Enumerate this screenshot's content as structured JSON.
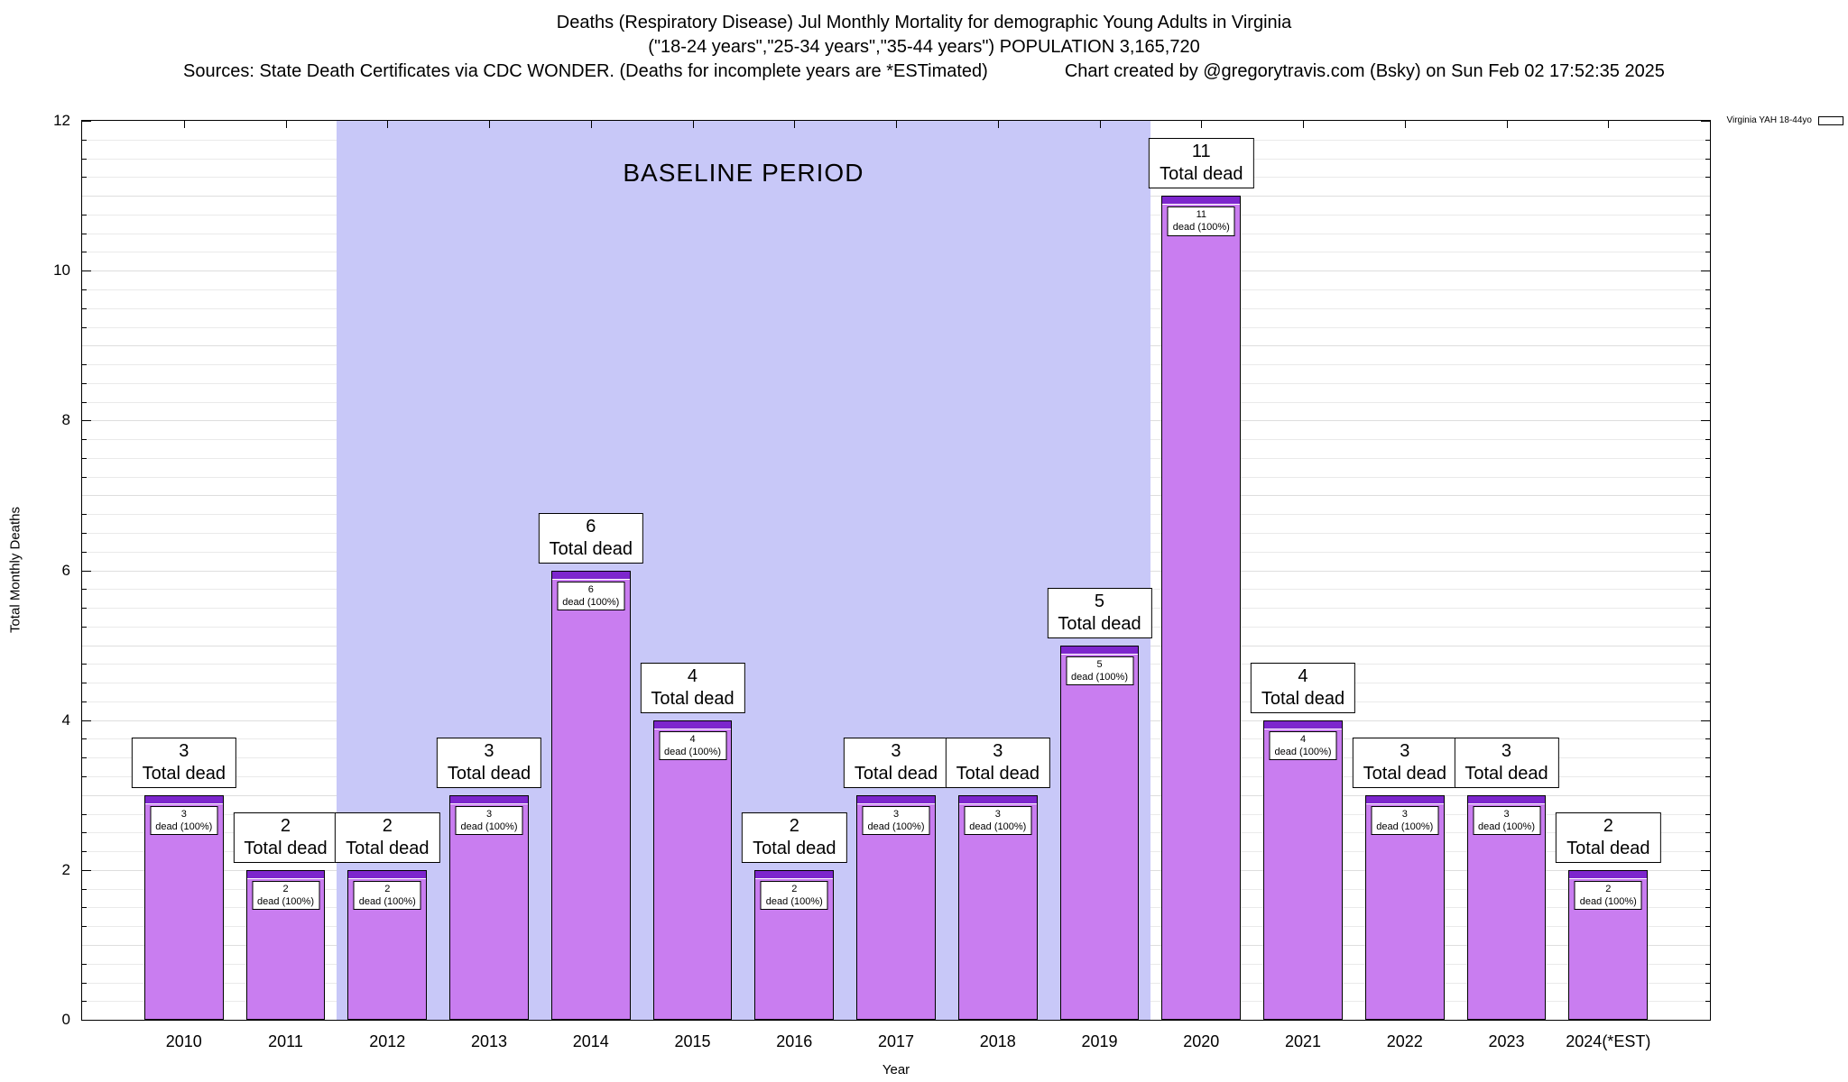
{
  "header": {
    "title_line1": "Deaths (Respiratory Disease) Jul Monthly Mortality for demographic Young Adults in Virginia",
    "title_line2": "(\"18-24 years\",\"25-34 years\",\"35-44 years\") POPULATION 3,165,720",
    "sources": "Sources: State Death Certificates via CDC WONDER. (Deaths for incomplete years are *ESTimated)",
    "credit": "Chart created by @gregorytravis.com (Bsky) on Sun Feb 02 17:52:35 2025"
  },
  "chart_data": {
    "type": "bar",
    "title": "Deaths (Respiratory Disease) Jul Monthly Mortality for demographic Young Adults in Virginia",
    "categories": [
      "2010",
      "2011",
      "2012",
      "2013",
      "2014",
      "2015",
      "2016",
      "2017",
      "2018",
      "2019",
      "2020",
      "2021",
      "2022",
      "2023",
      "2024(*EST)"
    ],
    "values": [
      3,
      2,
      2,
      3,
      6,
      4,
      2,
      3,
      3,
      5,
      11,
      4,
      3,
      3,
      2
    ],
    "xlabel": "Year",
    "ylabel": "Total Monthly Deaths",
    "ylim": [
      0,
      12
    ],
    "yticks": [
      0,
      2,
      4,
      6,
      8,
      10,
      12
    ],
    "minor_tick_step": 0.25,
    "grid": true,
    "bar_color": "#c97df0",
    "bar_cap_color": "#7d26cd",
    "baseline_period": {
      "label": "BASELINE PERIOD",
      "start_category": "2012",
      "end_category": "2019",
      "color": "#c8c8f8"
    },
    "annotations": {
      "total_label": "Total dead",
      "inner_label": "dead (100%)"
    },
    "legend": {
      "label": "Virginia YAH 18-44yo",
      "color": "#c97df0",
      "position": "top-right"
    }
  }
}
